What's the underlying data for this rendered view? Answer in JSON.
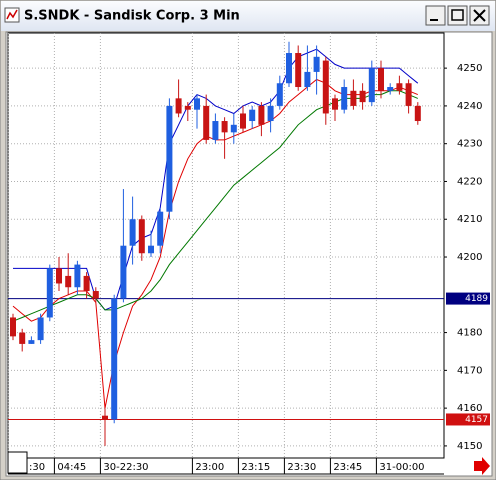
{
  "chart_data": {
    "type": "candlestick",
    "title": "S.SNDK - Sandisk Corp. 3 Min",
    "open": [
      4184,
      4180,
      4177,
      4178,
      4184,
      4197,
      4195,
      4192,
      4195,
      4191,
      4158,
      4157,
      4189,
      4203,
      4210,
      4201,
      4203,
      4212,
      4242,
      4240,
      4239,
      4240,
      4231,
      4236,
      4233,
      4238,
      4236,
      4240,
      4236,
      4240,
      4246,
      4254,
      4245,
      4249,
      4252,
      4242,
      4239,
      4244,
      4244,
      4241,
      4250,
      4244,
      4246,
      4246,
      4240
    ],
    "high": [
      4185,
      4181,
      4179,
      4185,
      4198,
      4200,
      4201,
      4199,
      4196,
      4192,
      4160,
      4190,
      4218,
      4216,
      4211,
      4207,
      4213,
      4242,
      4247,
      4241,
      4243,
      4243,
      4238,
      4237,
      4238,
      4240,
      4240,
      4241,
      4242,
      4248,
      4257,
      4256,
      4256,
      4256,
      4253,
      4243,
      4247,
      4247,
      4246,
      4252,
      4252,
      4246,
      4248,
      4247,
      4241
    ],
    "low": [
      4178,
      4175,
      4177,
      4177,
      4183,
      4191,
      4190,
      4190,
      4189,
      4188,
      4150,
      4156,
      4188,
      4198,
      4199,
      4200,
      4201,
      4210,
      4237,
      4236,
      4234,
      4230,
      4230,
      4226,
      4230,
      4233,
      4234,
      4232,
      4233,
      4239,
      4245,
      4244,
      4244,
      4243,
      4235,
      4236,
      4238,
      4239,
      4239,
      4240,
      4242,
      4243,
      4243,
      4238,
      4235
    ],
    "close": [
      4179,
      4177,
      4178,
      4184,
      4197,
      4193,
      4192,
      4198,
      4191,
      4189,
      4157,
      4189,
      4203,
      4210,
      4201,
      4203,
      4212,
      4240,
      4238,
      4239,
      4242,
      4231,
      4236,
      4233,
      4235,
      4234,
      4239,
      4235,
      4240,
      4246,
      4254,
      4245,
      4249,
      4253,
      4238,
      4239,
      4245,
      4240,
      4241,
      4250,
      4244,
      4245,
      4244,
      4240,
      4236
    ],
    "up_color": "#1f5fe0",
    "down_color": "#c81414",
    "lines": [
      {
        "color": "#0000c8",
        "values": [
          4197,
          4197,
          4197,
          4197,
          4197,
          4197,
          4197,
          4197,
          4197,
          4189,
          4186,
          4187,
          4195,
          4203,
          4205,
          4206,
          4213,
          4230,
          4235,
          4240,
          4243,
          4242,
          4240,
          4239,
          4238,
          4240,
          4241,
          4240,
          4241,
          4244,
          4250,
          4253,
          4254,
          4255,
          4253,
          4251,
          4250,
          4250,
          4250,
          4250,
          4250,
          4250,
          4250,
          4248,
          4246
        ]
      },
      {
        "color": "#e00000",
        "values": [
          4187,
          4185,
          4183,
          4184,
          4187,
          4189,
          4190,
          4191,
          4191,
          4188,
          4160,
          4172,
          4180,
          4187,
          4190,
          4194,
          4200,
          4212,
          4220,
          4226,
          4230,
          4232,
          4231,
          4231,
          4232,
          4233,
          4234,
          4235,
          4236,
          4238,
          4241,
          4243,
          4245,
          4247,
          4246,
          4244,
          4243,
          4243,
          4243,
          4244,
          4244,
          4244,
          4245,
          4244,
          4243
        ]
      },
      {
        "color": "#007800",
        "values": [
          4183,
          4184,
          4185,
          4186,
          4187,
          4188,
          4189,
          4190,
          4190,
          4189,
          4186,
          4186,
          4187,
          4188,
          4189,
          4191,
          4194,
          4198,
          4201,
          4204,
          4207,
          4210,
          4213,
          4216,
          4219,
          4221,
          4223,
          4225,
          4227,
          4229,
          4232,
          4235,
          4237,
          4239,
          4240,
          4241,
          4242,
          4242,
          4242,
          4243,
          4243,
          4244,
          4244,
          4243,
          4242
        ]
      }
    ],
    "hlines": [
      {
        "value": 4189,
        "color": "#000080"
      },
      {
        "value": 4157,
        "color": "#d01010"
      }
    ],
    "ylim": [
      4146.8,
      4259.3
    ],
    "yticks": [
      4150,
      4160,
      4170,
      4180,
      4200,
      4210,
      4220,
      4230,
      4240,
      4250
    ],
    "xticks": [
      {
        "value": 0,
        "label": ":30"
      },
      {
        "value": 5,
        "label": "04:45"
      },
      {
        "value": 10,
        "label": "30-22:30"
      },
      {
        "value": 20,
        "label": "23:00"
      },
      {
        "value": 25,
        "label": "23:15"
      },
      {
        "value": 30,
        "label": "23:30"
      },
      {
        "value": 35,
        "label": "23:45"
      },
      {
        "value": 40,
        "label": "31-00:00"
      }
    ],
    "grid": true
  }
}
